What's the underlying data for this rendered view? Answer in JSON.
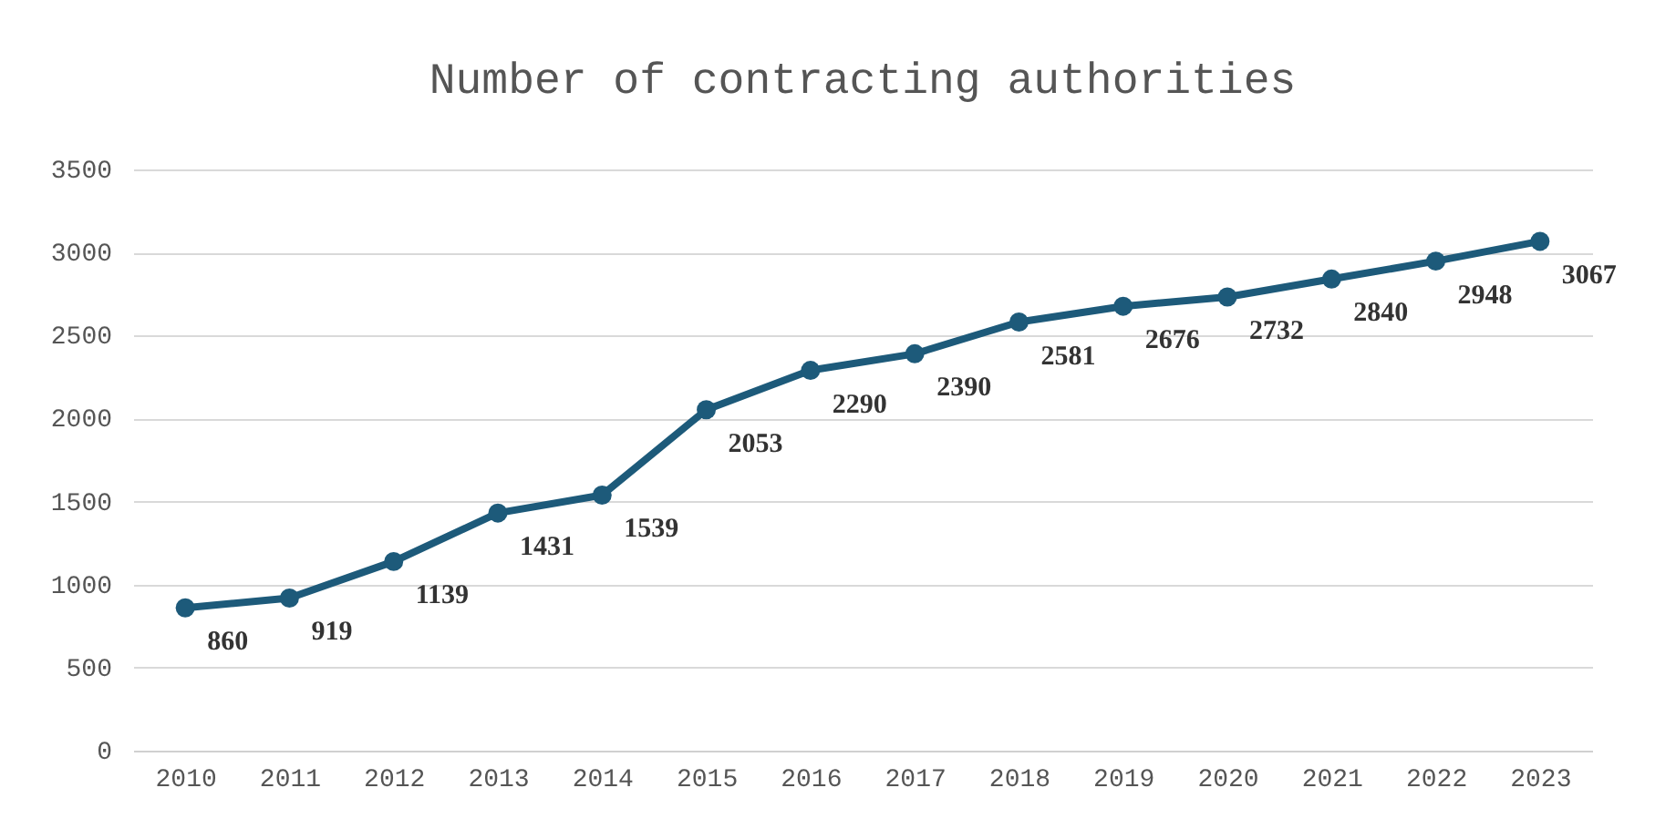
{
  "chart_data": {
    "type": "line",
    "title": "Number of contracting authorities",
    "categories": [
      "2010",
      "2011",
      "2012",
      "2013",
      "2014",
      "2015",
      "2016",
      "2017",
      "2018",
      "2019",
      "2020",
      "2021",
      "2022",
      "2023"
    ],
    "series": [
      {
        "color": "#1d5a7a",
        "values": [
          860,
          919,
          1139,
          1431,
          1539,
          2053,
          2290,
          2390,
          2581,
          2676,
          2732,
          2840,
          2948,
          3067
        ]
      }
    ],
    "ylim": [
      0,
      3500
    ],
    "yticks": [
      0,
      500,
      1000,
      1500,
      2000,
      2500,
      3000,
      3500
    ],
    "grid": "y",
    "marker": "circle",
    "line_style": "solid",
    "data_labels": true,
    "legend": false
  }
}
